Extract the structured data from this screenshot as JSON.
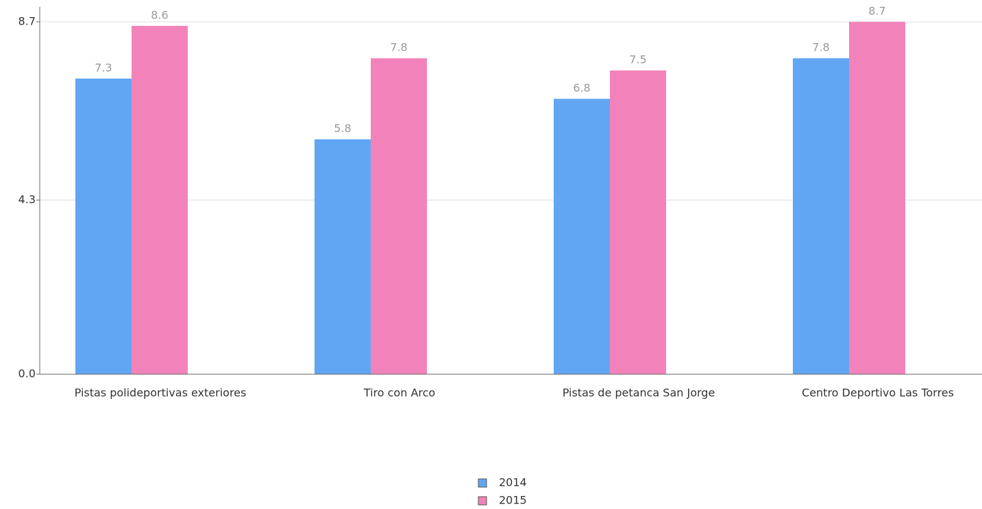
{
  "chart_data": {
    "type": "bar",
    "categories": [
      "Pistas polideportivas exteriores",
      "Tiro con Arco",
      "Pistas de petanca San Jorge",
      "Centro Deportivo Las Torres"
    ],
    "series": [
      {
        "name": "2014",
        "color": "#60a6f2",
        "values": [
          7.3,
          5.8,
          6.8,
          7.8
        ]
      },
      {
        "name": "2015",
        "color": "#f283ba",
        "values": [
          8.6,
          7.8,
          7.5,
          8.7
        ]
      }
    ],
    "ylim": [
      0,
      9.07
    ],
    "yticks": [
      {
        "value": 0,
        "label": "0.0"
      },
      4.3,
      8.7
    ],
    "grid": true
  }
}
